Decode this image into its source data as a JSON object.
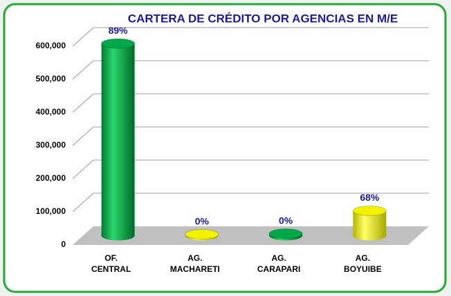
{
  "chart_data": {
    "type": "bar",
    "title": "CARTERA DE CRÉDITO POR AGENCIAS EN M/E",
    "categories": [
      "OF. CENTRAL",
      "AG. MACHARETI",
      "AG. CARAPARI",
      "AG. BOYUIBE"
    ],
    "values": [
      580000,
      4000,
      6000,
      75000
    ],
    "colors": [
      "#00a84a",
      "#f2f200",
      "#00a84a",
      "#f2f200"
    ],
    "annotations": [
      "89%",
      "0%",
      "0%",
      "68%"
    ],
    "ylim": [
      0,
      600000
    ],
    "yticks": [
      0,
      {
        "value": 100000,
        "label": "100,000"
      },
      {
        "value": 200000,
        "label": "200,000"
      },
      {
        "value": 300000,
        "label": "300,000"
      },
      {
        "value": 400000,
        "label": "400,000"
      },
      {
        "value": 500000,
        "label": "500,000"
      },
      {
        "value": 600000,
        "label": "600,000"
      }
    ],
    "grid": true
  }
}
